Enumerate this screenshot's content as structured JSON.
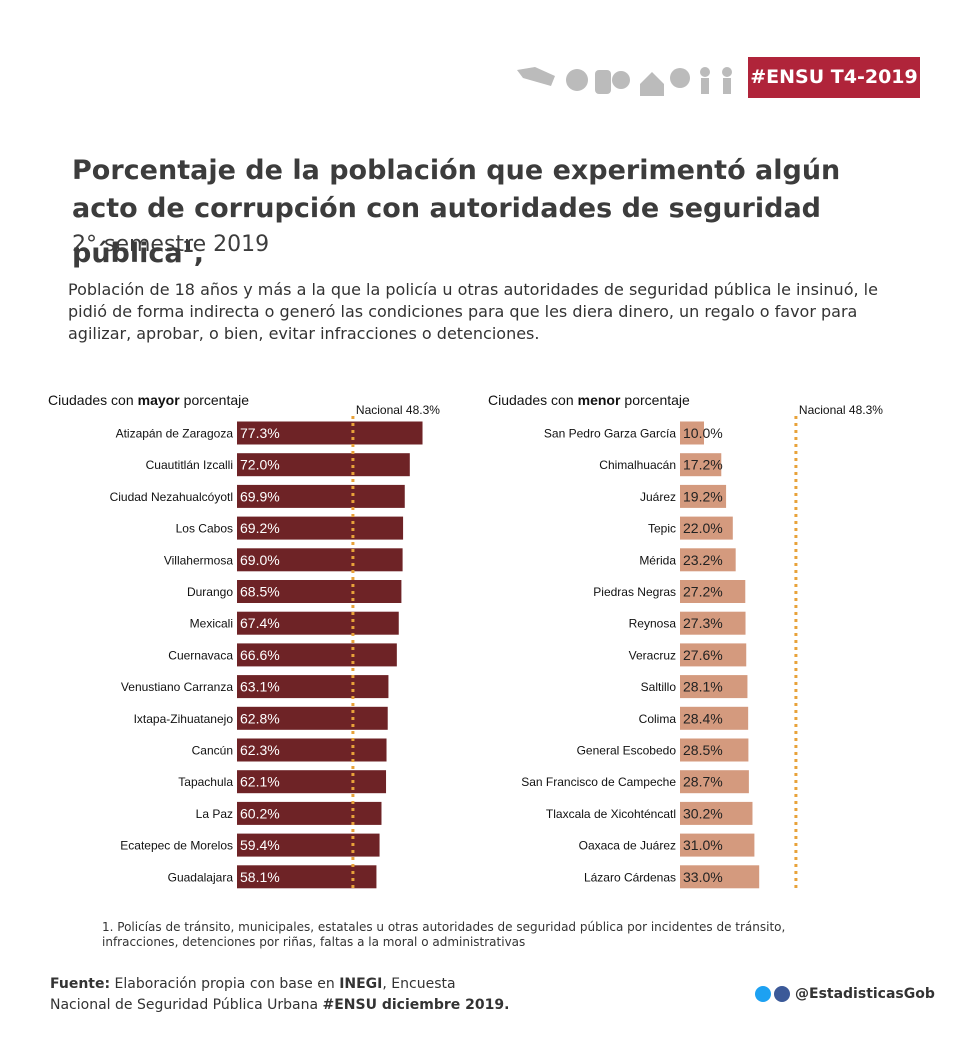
{
  "header": {
    "badge": "#ENSU T4-2019",
    "title": "Porcentaje de la población que experimentó algún acto de corrupción con autoridades de seguridad pública",
    "title_mark": "1",
    "title_end": ",",
    "subtitle": "2° semestre 2019"
  },
  "description": "Población de 18 años y más a la que la policía u otras autoridades de seguridad pública le insinuó, le pidió de forma indirecta o generó las condiciones para que les diera dinero, un regalo o favor para agilizar, aprobar, o bien, evitar infracciones o detenciones.",
  "footnote": {
    "mark": "1.",
    "text": "Policías de tránsito, municipales, estatales u otras autoridades de seguridad pública por incidentes de tránsito, infracciones, detenciones por riñas, faltas a la moral o administrativas"
  },
  "source": {
    "label": "Fuente:",
    "text1": "Elaboración propia con base en",
    "org": "INEGI",
    "text2": ", Encuesta Nacional de Seguridad Pública Urbana",
    "survey": "#ENSU diciembre 2019."
  },
  "social": "@EstadisticasGob",
  "chart_data": [
    {
      "type": "bar",
      "orientation": "horizontal",
      "title": {
        "prefix": "Ciudades con",
        "emphasis": "mayor",
        "suffix": "porcentaje"
      },
      "categories": [
        "Atizapán de Zaragoza",
        "Cuautitlán Izcalli",
        "Ciudad Nezahualcóyotl",
        "Los Cabos",
        "Villahermosa",
        "Durango",
        "Mexicali",
        "Cuernavaca",
        "Venustiano Carranza",
        "Ixtapa-Zihuatanejo",
        "Cancún",
        "Tapachula",
        "La Paz",
        "Ecatepec de Morelos",
        "Guadalajara"
      ],
      "values": [
        77.3,
        72.0,
        69.9,
        69.2,
        69.0,
        68.5,
        67.4,
        66.6,
        63.1,
        62.8,
        62.3,
        62.1,
        60.2,
        59.4,
        58.1
      ],
      "value_labels": [
        "77.3%",
        "72.0%",
        "69.9%",
        "69.2%",
        "69.0%",
        "68.5%",
        "67.4%",
        "66.6%",
        "63.1%",
        "62.8%",
        "62.3%",
        "62.1%",
        "60.2%",
        "59.4%",
        "58.1%"
      ],
      "color": "#6e2326",
      "value_label_color": "#ffffff",
      "reference_line": {
        "value": 48.3,
        "label": "Nacional 48.3%",
        "color": "#e8a23a"
      }
    },
    {
      "type": "bar",
      "orientation": "horizontal",
      "title": {
        "prefix": "Ciudades con",
        "emphasis": "menor",
        "suffix": "porcentaje"
      },
      "categories": [
        "San Pedro Garza García",
        "Chimalhuacán",
        "Juárez",
        "Tepic",
        "Mérida",
        "Piedras Negras",
        "Reynosa",
        "Veracruz",
        "Saltillo",
        "Colima",
        "General Escobedo",
        "San Francisco de Campeche",
        "Tlaxcala de Xicohténcatl",
        "Oaxaca de Juárez",
        "Lázaro Cárdenas"
      ],
      "values": [
        10.0,
        17.2,
        19.2,
        22.0,
        23.2,
        27.2,
        27.3,
        27.6,
        28.1,
        28.4,
        28.5,
        28.7,
        30.2,
        31.0,
        33.0
      ],
      "value_labels": [
        "10.0%",
        "17.2%",
        "19.2%",
        "22.0%",
        "23.2%",
        "27.2%",
        "27.3%",
        "27.6%",
        "28.1%",
        "28.4%",
        "28.5%",
        "28.7%",
        "30.2%",
        "31.0%",
        "33.0%"
      ],
      "color": "#d49a7e",
      "value_label_color": "#222222",
      "reference_line": {
        "value": 48.3,
        "label": "Nacional 48.3%",
        "color": "#e8a23a"
      }
    }
  ]
}
